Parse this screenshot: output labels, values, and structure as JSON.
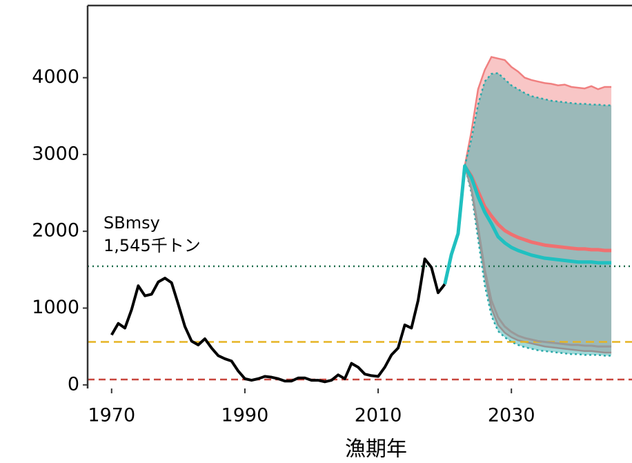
{
  "chart_data": {
    "type": "line",
    "x_label": "漁期年",
    "annotation": [
      "SBmsy",
      "1,545千トン"
    ],
    "xlim": [
      1966.4,
      2048.1
    ],
    "xticks": [
      1970,
      1990,
      2010,
      2030
    ],
    "ylim": [
      -20,
      4940
    ],
    "yticks": [
      0,
      1000,
      2000,
      3000,
      4000
    ],
    "ref_lines": [
      {
        "value": 1545,
        "color": "#1a6b4a",
        "dash": "2,5"
      },
      {
        "value": 560,
        "color": "#e6b422",
        "dash": "12,7"
      },
      {
        "value": 70,
        "color": "#c8453c",
        "dash": "10,6"
      }
    ],
    "bands": [
      {
        "color": "#f08080",
        "line_dash": "none",
        "x": [
          2023,
          2024,
          2025,
          2026,
          2027,
          2028,
          2029,
          2030,
          2031,
          2032,
          2033,
          2034,
          2035,
          2036,
          2037,
          2038,
          2039,
          2040,
          2041,
          2042,
          2043,
          2044,
          2045
        ],
        "upper": [
          2850,
          3300,
          3850,
          4100,
          4270,
          4250,
          4230,
          4140,
          4080,
          4000,
          3970,
          3950,
          3930,
          3920,
          3900,
          3910,
          3880,
          3870,
          3860,
          3890,
          3850,
          3880,
          3880
        ],
        "lower": [
          2850,
          2550,
          2000,
          1450,
          1000,
          780,
          680,
          620,
          580,
          560,
          540,
          520,
          500,
          490,
          480,
          470,
          460,
          450,
          440,
          440,
          430,
          420,
          420
        ]
      },
      {
        "color": "#2aa9a9",
        "line_dash": "3,4",
        "x": [
          2023,
          2024,
          2025,
          2026,
          2027,
          2028,
          2029,
          2030,
          2031,
          2032,
          2033,
          2034,
          2035,
          2036,
          2037,
          2038,
          2039,
          2040,
          2041,
          2042,
          2043,
          2044,
          2045
        ],
        "upper": [
          2850,
          3200,
          3650,
          3950,
          4050,
          4060,
          3980,
          3900,
          3850,
          3800,
          3760,
          3740,
          3720,
          3700,
          3690,
          3680,
          3670,
          3660,
          3660,
          3650,
          3650,
          3640,
          3640
        ],
        "lower": [
          2850,
          2500,
          1900,
          1300,
          900,
          700,
          620,
          560,
          520,
          490,
          470,
          450,
          440,
          430,
          420,
          410,
          400,
          400,
          390,
          390,
          390,
          380,
          380
        ]
      }
    ],
    "series": [
      {
        "color": "#999999",
        "width": 3,
        "x": [
          2023,
          2024,
          2025,
          2026,
          2027,
          2028,
          2029,
          2030,
          2031,
          2032,
          2033,
          2034,
          2035,
          2036,
          2037,
          2038,
          2039,
          2040,
          2041,
          2042,
          2043,
          2044,
          2045
        ],
        "values": [
          2850,
          2550,
          2050,
          1500,
          1100,
          880,
          760,
          690,
          640,
          610,
          590,
          570,
          560,
          550,
          540,
          530,
          520,
          520,
          510,
          510,
          500,
          500,
          500
        ]
      },
      {
        "color": "#f07070",
        "width": 5,
        "x": [
          2023,
          2024,
          2025,
          2026,
          2027,
          2028,
          2029,
          2030,
          2031,
          2032,
          2033,
          2034,
          2035,
          2036,
          2037,
          2038,
          2039,
          2040,
          2041,
          2042,
          2043,
          2044,
          2045
        ],
        "values": [
          2850,
          2720,
          2520,
          2320,
          2200,
          2090,
          2010,
          1960,
          1920,
          1890,
          1860,
          1840,
          1820,
          1810,
          1800,
          1790,
          1780,
          1770,
          1770,
          1760,
          1760,
          1750,
          1750
        ]
      },
      {
        "color": "#20c0c0",
        "width": 5,
        "x": [
          2020,
          2021,
          2022,
          2023,
          2024,
          2025,
          2026,
          2027,
          2028,
          2029,
          2030,
          2031,
          2032,
          2033,
          2034,
          2035,
          2036,
          2037,
          2038,
          2039,
          2040,
          2041,
          2042,
          2043,
          2044,
          2045
        ],
        "values": [
          1310,
          1700,
          1970,
          2850,
          2700,
          2450,
          2250,
          2100,
          1930,
          1850,
          1790,
          1750,
          1720,
          1690,
          1670,
          1650,
          1640,
          1630,
          1620,
          1610,
          1600,
          1600,
          1600,
          1590,
          1590,
          1590
        ]
      },
      {
        "color": "#000000",
        "width": 4,
        "x": [
          1970,
          1971,
          1972,
          1973,
          1974,
          1975,
          1976,
          1977,
          1978,
          1979,
          1980,
          1981,
          1982,
          1983,
          1984,
          1985,
          1986,
          1987,
          1988,
          1989,
          1990,
          1991,
          1992,
          1993,
          1994,
          1995,
          1996,
          1997,
          1998,
          1999,
          2000,
          2001,
          2002,
          2003,
          2004,
          2005,
          2006,
          2007,
          2008,
          2009,
          2010,
          2011,
          2012,
          2013,
          2014,
          2015,
          2016,
          2017,
          2018,
          2019,
          2020
        ],
        "values": [
          650,
          800,
          740,
          980,
          1290,
          1160,
          1180,
          1340,
          1390,
          1330,
          1050,
          760,
          570,
          520,
          600,
          480,
          380,
          340,
          310,
          180,
          80,
          60,
          80,
          110,
          100,
          80,
          50,
          50,
          90,
          90,
          60,
          60,
          40,
          60,
          130,
          80,
          280,
          230,
          140,
          120,
          110,
          230,
          390,
          480,
          780,
          740,
          1100,
          1640,
          1530,
          1200,
          1310
        ]
      }
    ]
  }
}
